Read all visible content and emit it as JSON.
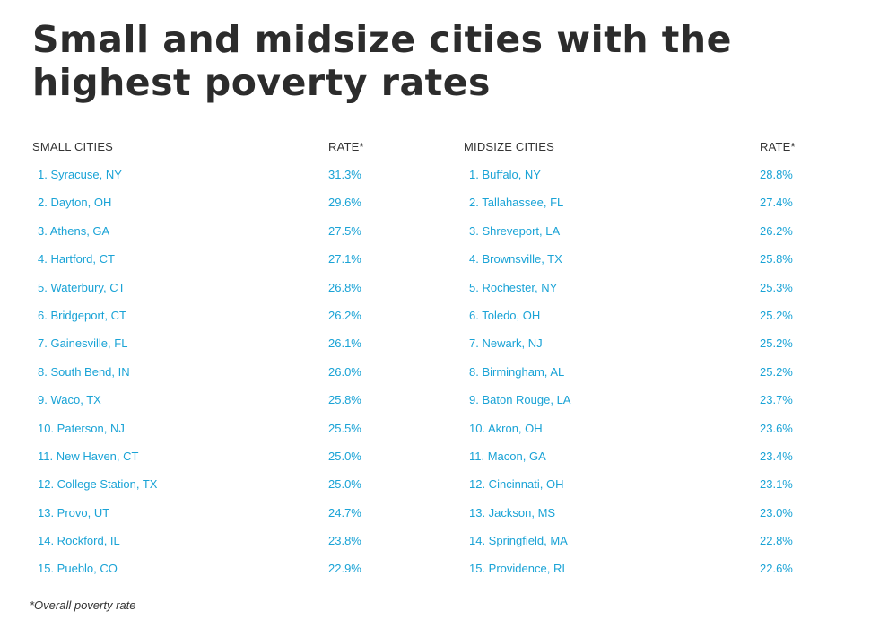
{
  "title": "Small and midsize cities with the highest poverty rates",
  "small": {
    "header_name": "SMALL CITIES",
    "header_rate": "RATE*",
    "rows": [
      {
        "name": "1. Syracuse, NY",
        "rate": "31.3%"
      },
      {
        "name": "2. Dayton, OH",
        "rate": "29.6%"
      },
      {
        "name": "3. Athens, GA",
        "rate": "27.5%"
      },
      {
        "name": "4. Hartford, CT",
        "rate": "27.1%"
      },
      {
        "name": "5. Waterbury, CT",
        "rate": "26.8%"
      },
      {
        "name": "6. Bridgeport, CT",
        "rate": "26.2%"
      },
      {
        "name": "7. Gainesville, FL",
        "rate": "26.1%"
      },
      {
        "name": "8. South Bend, IN",
        "rate": "26.0%"
      },
      {
        "name": "9. Waco, TX",
        "rate": "25.8%"
      },
      {
        "name": "10. Paterson, NJ",
        "rate": "25.5%"
      },
      {
        "name": "11. New Haven, CT",
        "rate": "25.0%"
      },
      {
        "name": "12. College Station, TX",
        "rate": "25.0%"
      },
      {
        "name": "13. Provo, UT",
        "rate": "24.7%"
      },
      {
        "name": "14. Rockford, IL",
        "rate": "23.8%"
      },
      {
        "name": "15. Pueblo, CO",
        "rate": "22.9%"
      }
    ]
  },
  "midsize": {
    "header_name": "MIDSIZE CITIES",
    "header_rate": "RATE*",
    "rows": [
      {
        "name": "1. Buffalo, NY",
        "rate": "28.8%"
      },
      {
        "name": "2. Tallahassee, FL",
        "rate": "27.4%"
      },
      {
        "name": "3. Shreveport, LA",
        "rate": "26.2%"
      },
      {
        "name": "4. Brownsville, TX",
        "rate": "25.8%"
      },
      {
        "name": "5. Rochester, NY",
        "rate": "25.3%"
      },
      {
        "name": "6. Toledo, OH",
        "rate": "25.2%"
      },
      {
        "name": "7. Newark, NJ",
        "rate": "25.2%"
      },
      {
        "name": "8. Birmingham, AL",
        "rate": "25.2%"
      },
      {
        "name": "9. Baton Rouge, LA",
        "rate": "23.7%"
      },
      {
        "name": "10. Akron, OH",
        "rate": "23.6%"
      },
      {
        "name": "11. Macon, GA",
        "rate": "23.4%"
      },
      {
        "name": "12. Cincinnati, OH",
        "rate": "23.1%"
      },
      {
        "name": "13. Jackson, MS",
        "rate": "23.0%"
      },
      {
        "name": "14. Springfield, MA",
        "rate": "22.8%"
      },
      {
        "name": "15. Providence, RI",
        "rate": "22.6%"
      }
    ]
  },
  "footnote": "*Overall poverty rate",
  "colors": {
    "title": "#2c2c2c",
    "header": "#333333",
    "link": "#1aa3d6"
  }
}
